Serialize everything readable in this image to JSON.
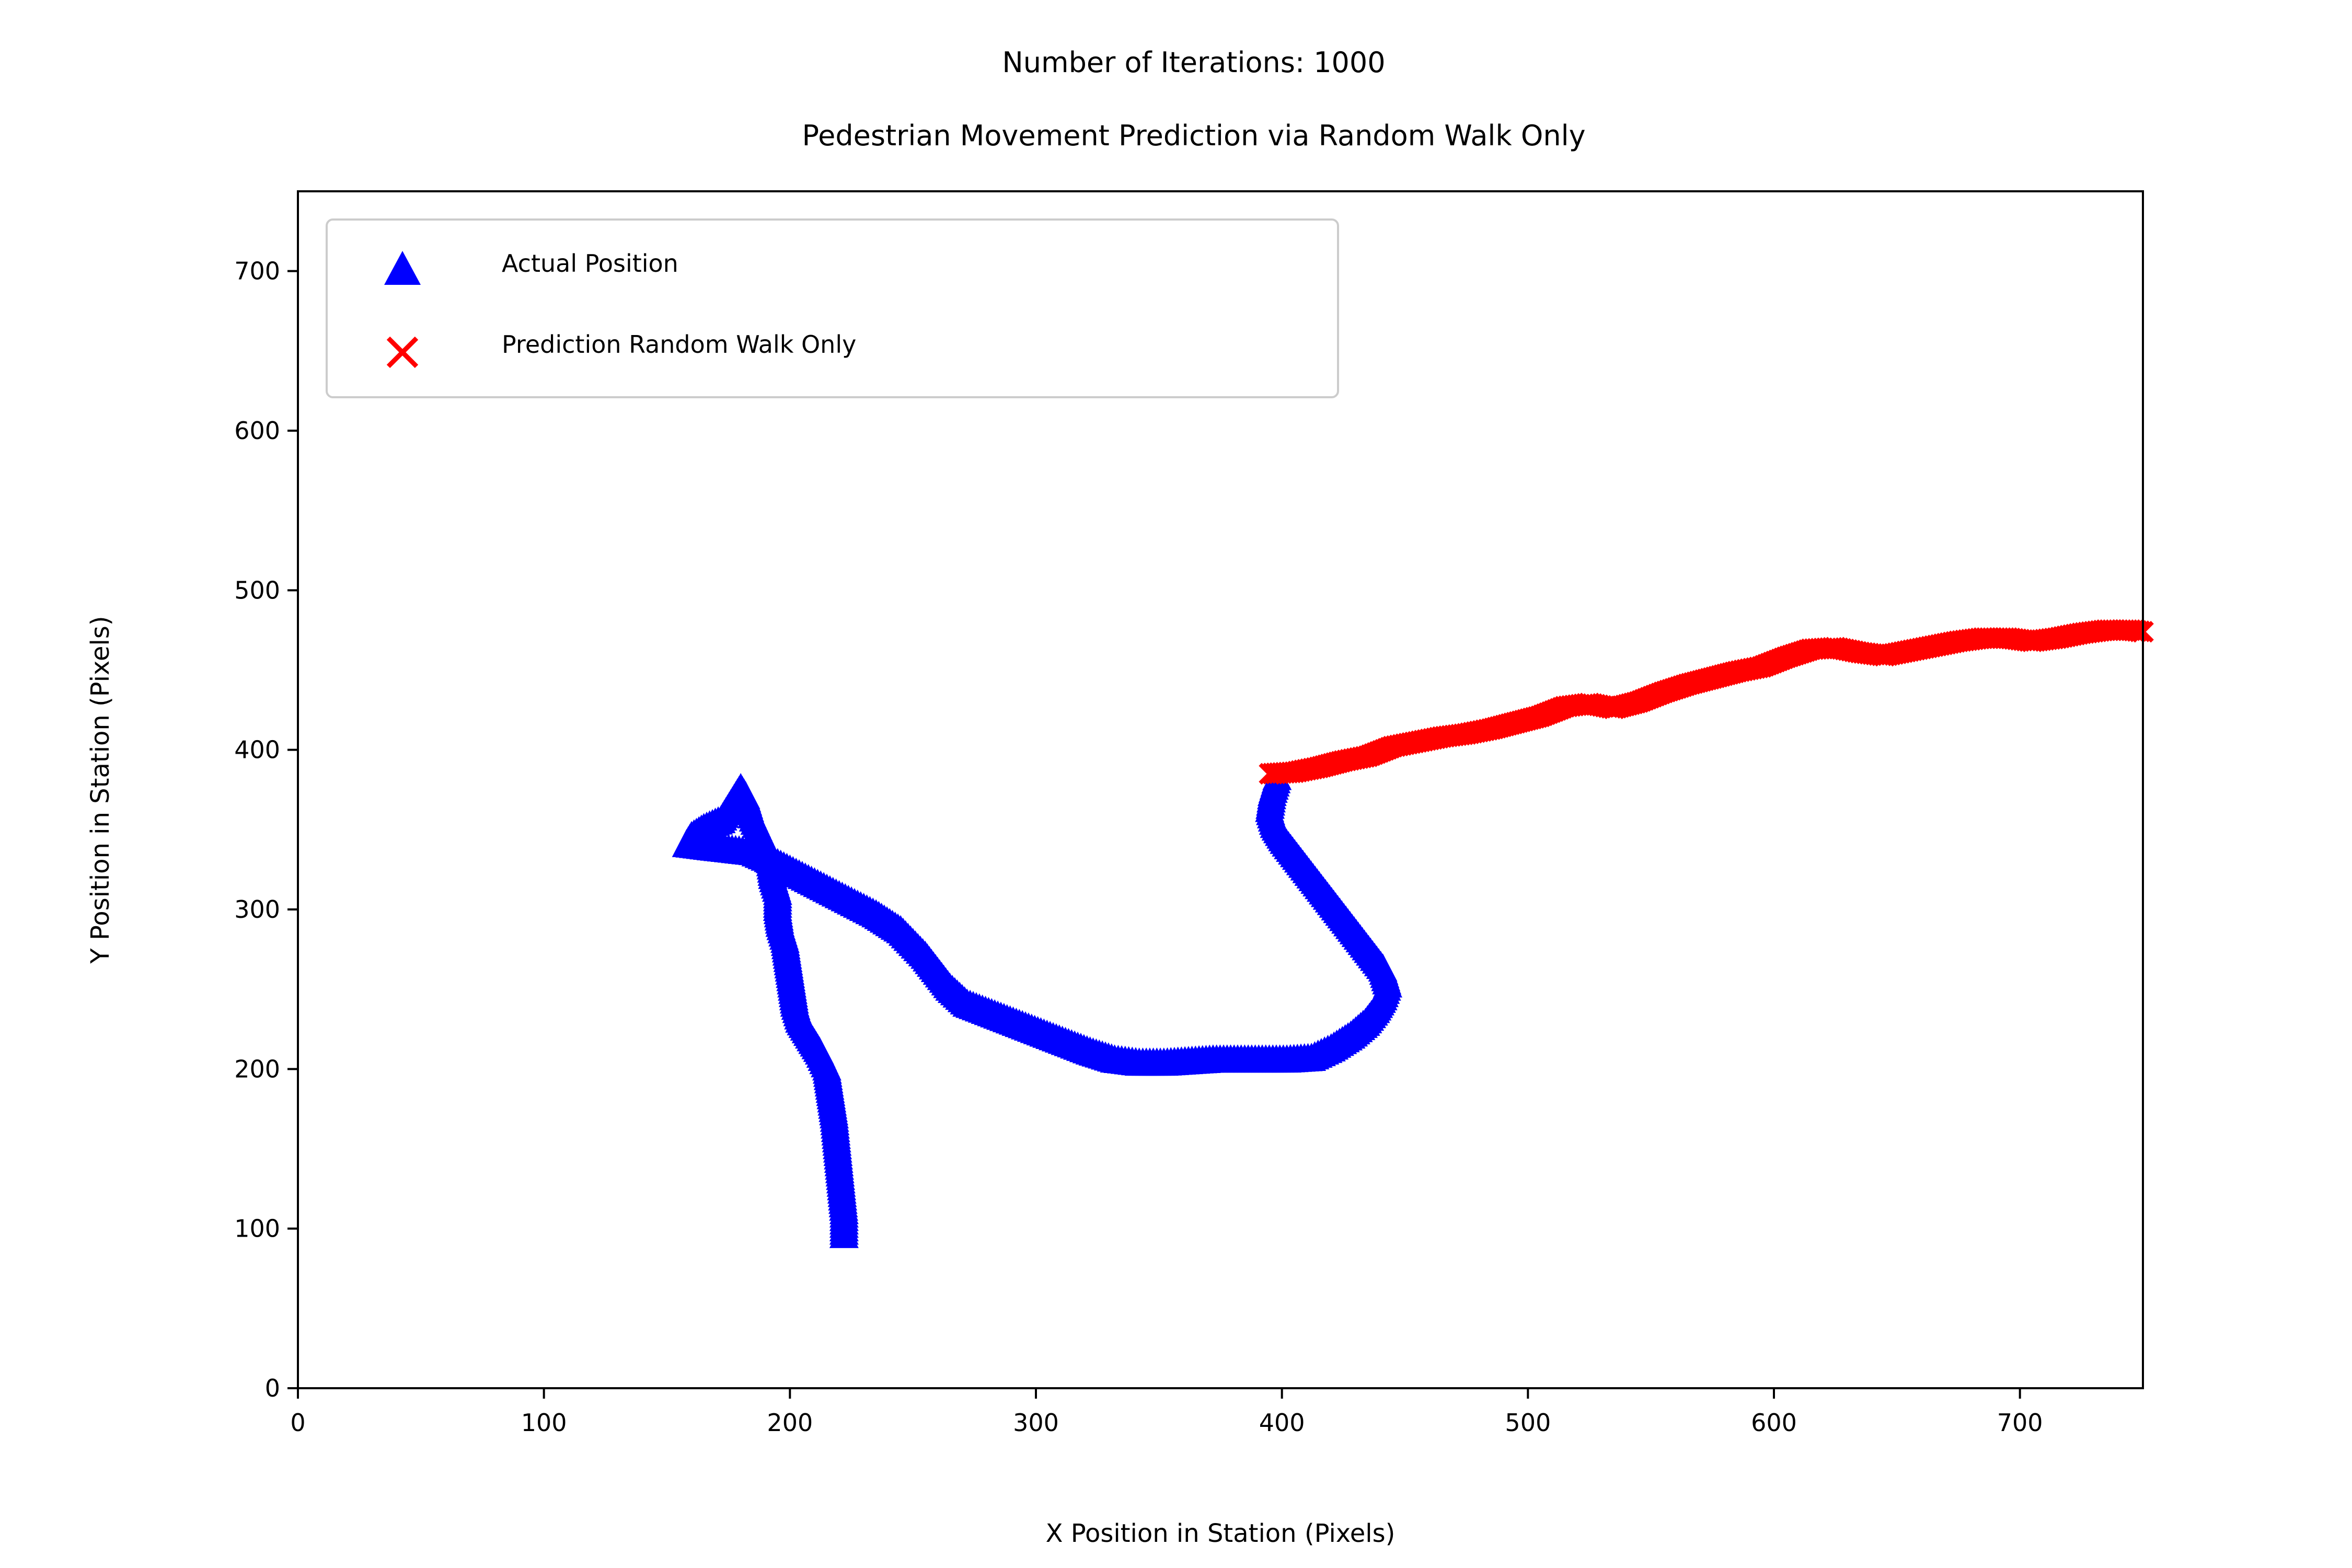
{
  "chart_data": {
    "type": "scatter",
    "title": "Number of Iterations: 1000",
    "subtitle": "Pedestrian Movement Prediction via Random Walk Only",
    "xlabel": "X Position in Station (Pixels)",
    "ylabel": "Y Position in Station (Pixels)",
    "xlim": [
      0,
      750
    ],
    "ylim": [
      0,
      750
    ],
    "xticks": [
      0,
      100,
      200,
      300,
      400,
      500,
      600,
      700
    ],
    "yticks": [
      0,
      100,
      200,
      300,
      400,
      500,
      600,
      700
    ],
    "grid": false,
    "legend_position": "top-left",
    "series": [
      {
        "name": "Actual Position",
        "marker": "triangle-up",
        "color": "#0000ff",
        "points": [
          [
            222,
            95
          ],
          [
            222,
            110
          ],
          [
            221,
            125
          ],
          [
            220,
            140
          ],
          [
            219,
            155
          ],
          [
            218,
            170
          ],
          [
            217,
            180
          ],
          [
            216,
            190
          ],
          [
            215,
            200
          ],
          [
            212,
            210
          ],
          [
            208,
            220
          ],
          [
            204,
            230
          ],
          [
            202,
            240
          ],
          [
            201,
            250
          ],
          [
            200,
            260
          ],
          [
            199,
            270
          ],
          [
            198,
            280
          ],
          [
            196,
            290
          ],
          [
            195,
            300
          ],
          [
            195,
            310
          ],
          [
            193,
            320
          ],
          [
            192,
            330
          ],
          [
            190,
            340
          ],
          [
            187,
            350
          ],
          [
            184,
            360
          ],
          [
            182,
            370
          ],
          [
            180,
            375
          ],
          [
            176,
            365
          ],
          [
            172,
            355
          ],
          [
            165,
            350
          ],
          [
            160,
            345
          ],
          [
            158,
            340
          ],
          [
            168,
            338
          ],
          [
            185,
            335
          ],
          [
            195,
            328
          ],
          [
            205,
            320
          ],
          [
            215,
            312
          ],
          [
            225,
            304
          ],
          [
            235,
            296
          ],
          [
            245,
            286
          ],
          [
            250,
            278
          ],
          [
            255,
            270
          ],
          [
            260,
            260
          ],
          [
            265,
            250
          ],
          [
            272,
            240
          ],
          [
            282,
            234
          ],
          [
            292,
            228
          ],
          [
            302,
            222
          ],
          [
            312,
            216
          ],
          [
            322,
            210
          ],
          [
            332,
            205
          ],
          [
            342,
            203
          ],
          [
            352,
            203
          ],
          [
            362,
            204
          ],
          [
            372,
            205
          ],
          [
            382,
            205
          ],
          [
            392,
            205
          ],
          [
            402,
            205
          ],
          [
            412,
            206
          ],
          [
            420,
            212
          ],
          [
            428,
            220
          ],
          [
            434,
            228
          ],
          [
            438,
            236
          ],
          [
            441,
            244
          ],
          [
            443,
            252
          ],
          [
            441,
            262
          ],
          [
            436,
            272
          ],
          [
            431,
            282
          ],
          [
            426,
            292
          ],
          [
            421,
            302
          ],
          [
            416,
            312
          ],
          [
            411,
            322
          ],
          [
            406,
            332
          ],
          [
            401,
            342
          ],
          [
            397,
            352
          ],
          [
            395,
            362
          ],
          [
            396,
            372
          ],
          [
            398,
            382
          ]
        ]
      },
      {
        "name": "Prediction Random Walk Only",
        "marker": "x",
        "color": "#ff0000",
        "points": [
          [
            395,
            385
          ],
          [
            405,
            386
          ],
          [
            415,
            389
          ],
          [
            425,
            393
          ],
          [
            435,
            396
          ],
          [
            445,
            402
          ],
          [
            455,
            405
          ],
          [
            465,
            408
          ],
          [
            475,
            410
          ],
          [
            485,
            413
          ],
          [
            495,
            417
          ],
          [
            505,
            421
          ],
          [
            515,
            427
          ],
          [
            525,
            429
          ],
          [
            535,
            426
          ],
          [
            545,
            430
          ],
          [
            555,
            436
          ],
          [
            565,
            441
          ],
          [
            575,
            445
          ],
          [
            585,
            449
          ],
          [
            595,
            452
          ],
          [
            605,
            458
          ],
          [
            615,
            463
          ],
          [
            625,
            464
          ],
          [
            635,
            461
          ],
          [
            645,
            459
          ],
          [
            655,
            462
          ],
          [
            665,
            465
          ],
          [
            675,
            468
          ],
          [
            685,
            470
          ],
          [
            695,
            470
          ],
          [
            705,
            468
          ],
          [
            715,
            470
          ],
          [
            725,
            473
          ],
          [
            735,
            475
          ],
          [
            745,
            475
          ],
          [
            750,
            474
          ]
        ]
      }
    ]
  }
}
